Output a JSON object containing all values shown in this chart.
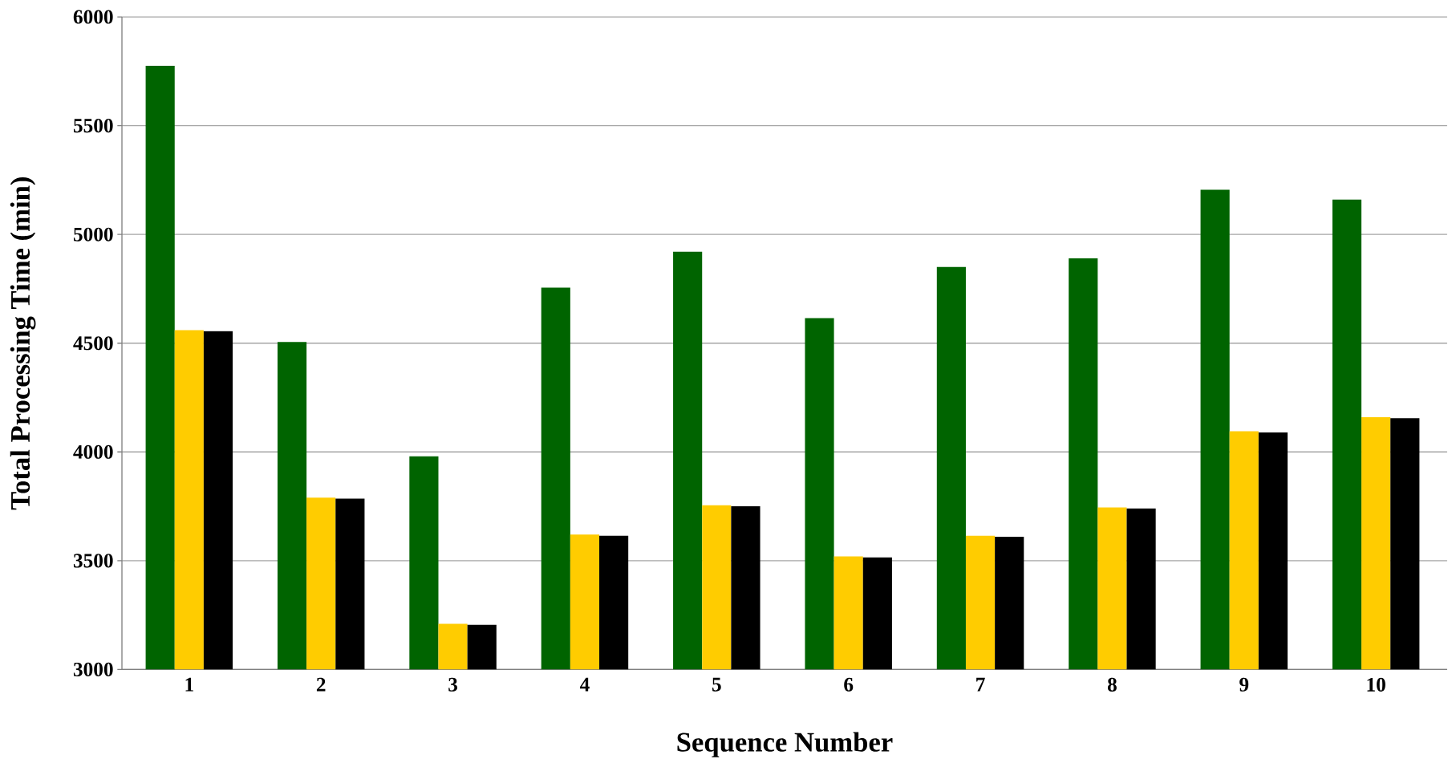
{
  "chart_data": {
    "type": "bar",
    "xlabel": "Sequence Number",
    "ylabel": "Total Processing Time (min)",
    "categories": [
      "1",
      "2",
      "3",
      "4",
      "5",
      "6",
      "7",
      "8",
      "9",
      "10"
    ],
    "series": [
      {
        "color": "#006400",
        "values": [
          5775,
          4505,
          3980,
          4755,
          4920,
          4615,
          4850,
          4890,
          5205,
          5160
        ]
      },
      {
        "color": "#ffcc00",
        "values": [
          4560,
          3790,
          3210,
          3620,
          3755,
          3520,
          3615,
          3745,
          4095,
          4160
        ]
      },
      {
        "color": "#000000",
        "values": [
          4555,
          3785,
          3205,
          3615,
          3750,
          3515,
          3610,
          3740,
          4090,
          4155
        ]
      }
    ],
    "ylim": [
      3000,
      6000
    ],
    "yticks": [
      3000,
      3500,
      4000,
      4500,
      5000,
      5500,
      6000
    ],
    "grid": "y"
  }
}
